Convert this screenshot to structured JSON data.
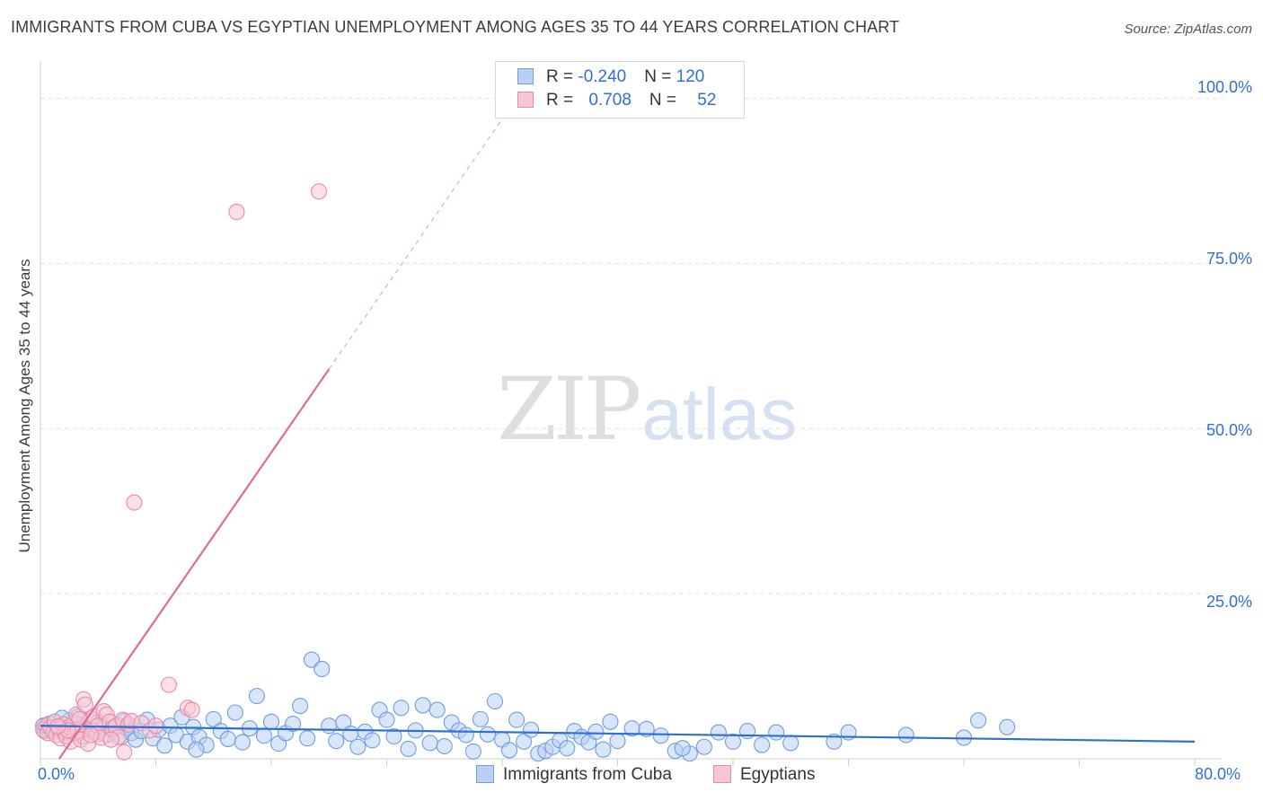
{
  "title": "IMMIGRANTS FROM CUBA VS EGYPTIAN UNEMPLOYMENT AMONG AGES 35 TO 44 YEARS CORRELATION CHART",
  "source": "Source: ZipAtlas.com",
  "watermark": {
    "zip": "ZIP",
    "atlas": "atlas"
  },
  "colors": {
    "blue_fill": "#b9d0f2",
    "blue_stroke": "#6e9ede",
    "blue_line": "#2e6fd2",
    "pink_fill": "#f6c6d5",
    "pink_stroke": "#e98aa8",
    "pink_line": "#e06b94",
    "axis_text": "#2f6fd6",
    "grid": "#e4e4e4"
  },
  "legend": {
    "rows": [
      {
        "r_label": "R = ",
        "r_value": "-0.240",
        "n_label": "N = ",
        "n_value": "120"
      },
      {
        "r_label": "R = ",
        "r_value": "0.708",
        "n_label": "N = ",
        "n_value": "52"
      }
    ]
  },
  "chart_data": {
    "type": "scatter",
    "title": "IMMIGRANTS FROM CUBA VS EGYPTIAN UNEMPLOYMENT AMONG AGES 35 TO 44 YEARS CORRELATION CHART",
    "xlabel": "",
    "ylabel": "Unemployment Among Ages 35 to 44 years",
    "xlim": [
      0,
      80
    ],
    "ylim": [
      0,
      104
    ],
    "x_tick_labels": [
      "0.0%",
      "80.0%"
    ],
    "y_ticks": [
      25,
      50,
      75,
      100
    ],
    "y_tick_labels": [
      "25.0%",
      "50.0%",
      "75.0%",
      "100.0%"
    ],
    "legend_position": "top-center",
    "series": [
      {
        "name": "Immigrants from Cuba",
        "r": -0.24,
        "n": 120,
        "trend": {
          "x0": 0,
          "y0": 5.0,
          "x1": 80,
          "y1": 2.6,
          "dashed_from": null
        },
        "points": [
          [
            0.2,
            5.0
          ],
          [
            0.4,
            4.6
          ],
          [
            0.6,
            5.3
          ],
          [
            0.8,
            4.4
          ],
          [
            1.0,
            5.6
          ],
          [
            1.2,
            4.9
          ],
          [
            1.4,
            4.2
          ],
          [
            1.6,
            5.2
          ],
          [
            1.8,
            4.7
          ],
          [
            2.0,
            5.8
          ],
          [
            2.2,
            4.3
          ],
          [
            2.4,
            5.4
          ],
          [
            2.6,
            6.4
          ],
          [
            2.8,
            4.8
          ],
          [
            3.0,
            5.1
          ],
          [
            3.3,
            4.5
          ],
          [
            3.5,
            6.1
          ],
          [
            3.8,
            4.0
          ],
          [
            4.0,
            5.5
          ],
          [
            4.3,
            4.9
          ],
          [
            4.6,
            3.6
          ],
          [
            5.0,
            4.4
          ],
          [
            5.3,
            5.2
          ],
          [
            5.6,
            3.3
          ],
          [
            6.0,
            4.6
          ],
          [
            6.3,
            3.9
          ],
          [
            6.6,
            2.9
          ],
          [
            7.0,
            4.2
          ],
          [
            7.4,
            5.9
          ],
          [
            7.8,
            3.1
          ],
          [
            8.2,
            4.4
          ],
          [
            8.6,
            2.0
          ],
          [
            9.0,
            5.0
          ],
          [
            9.4,
            3.6
          ],
          [
            9.8,
            6.3
          ],
          [
            10.2,
            2.6
          ],
          [
            10.6,
            4.8
          ],
          [
            11.0,
            3.3
          ],
          [
            11.5,
            2.1
          ],
          [
            12.0,
            6.0
          ],
          [
            12.5,
            4.2
          ],
          [
            13.0,
            3.0
          ],
          [
            13.5,
            7.0
          ],
          [
            14.0,
            2.5
          ],
          [
            14.5,
            4.6
          ],
          [
            15.0,
            9.5
          ],
          [
            15.5,
            3.5
          ],
          [
            16.0,
            5.6
          ],
          [
            16.5,
            2.3
          ],
          [
            17.0,
            3.9
          ],
          [
            17.5,
            5.3
          ],
          [
            18.0,
            8.0
          ],
          [
            18.5,
            3.1
          ],
          [
            18.8,
            15.0
          ],
          [
            19.5,
            13.6
          ],
          [
            20.0,
            5.0
          ],
          [
            20.5,
            2.7
          ],
          [
            21.0,
            5.5
          ],
          [
            21.5,
            3.8
          ],
          [
            22.0,
            1.8
          ],
          [
            22.5,
            4.1
          ],
          [
            23.0,
            2.8
          ],
          [
            23.5,
            7.4
          ],
          [
            24.0,
            5.9
          ],
          [
            24.5,
            3.4
          ],
          [
            25.0,
            7.7
          ],
          [
            25.5,
            1.5
          ],
          [
            26.0,
            4.3
          ],
          [
            26.5,
            8.1
          ],
          [
            27.0,
            2.4
          ],
          [
            27.5,
            7.4
          ],
          [
            28.0,
            1.9
          ],
          [
            28.5,
            5.5
          ],
          [
            29.0,
            4.3
          ],
          [
            29.5,
            3.6
          ],
          [
            30.0,
            1.1
          ],
          [
            30.5,
            6.0
          ],
          [
            31.0,
            3.7
          ],
          [
            31.5,
            8.7
          ],
          [
            32.0,
            2.9
          ],
          [
            32.5,
            1.3
          ],
          [
            33.0,
            5.9
          ],
          [
            33.5,
            2.6
          ],
          [
            34.0,
            4.4
          ],
          [
            34.5,
            0.8
          ],
          [
            35.0,
            1.2
          ],
          [
            35.5,
            1.8
          ],
          [
            36.0,
            2.8
          ],
          [
            36.5,
            1.6
          ],
          [
            37.0,
            4.2
          ],
          [
            37.5,
            3.3
          ],
          [
            38.0,
            2.5
          ],
          [
            38.5,
            4.1
          ],
          [
            39.0,
            1.4
          ],
          [
            39.5,
            5.6
          ],
          [
            40.0,
            2.7
          ],
          [
            41.0,
            4.6
          ],
          [
            42.0,
            4.5
          ],
          [
            43.0,
            3.5
          ],
          [
            44.0,
            1.2
          ],
          [
            45.0,
            0.8
          ],
          [
            46.0,
            1.8
          ],
          [
            47.0,
            4.0
          ],
          [
            48.0,
            2.6
          ],
          [
            49.0,
            4.2
          ],
          [
            50.0,
            2.1
          ],
          [
            51.0,
            4.0
          ],
          [
            52.0,
            2.4
          ],
          [
            55.0,
            2.6
          ],
          [
            56.0,
            4.0
          ],
          [
            60.0,
            3.6
          ],
          [
            64.0,
            3.2
          ],
          [
            65.0,
            5.8
          ],
          [
            67.0,
            4.8
          ],
          [
            0.3,
            4.2
          ],
          [
            1.5,
            6.2
          ],
          [
            2.9,
            3.4
          ],
          [
            5.8,
            5.7
          ],
          [
            10.8,
            1.4
          ],
          [
            44.5,
            1.6
          ]
        ]
      },
      {
        "name": "Egyptians",
        "r": 0.708,
        "n": 52,
        "trend": {
          "x0": 1.3,
          "y0": 0,
          "x1": 33.0,
          "y1": 100,
          "dashed_from": 20.0
        },
        "points": [
          [
            0.2,
            4.4
          ],
          [
            0.4,
            5.0
          ],
          [
            0.5,
            3.9
          ],
          [
            0.7,
            4.7
          ],
          [
            0.9,
            4.1
          ],
          [
            1.0,
            5.6
          ],
          [
            1.1,
            3.6
          ],
          [
            1.3,
            4.5
          ],
          [
            1.4,
            3.1
          ],
          [
            1.6,
            5.2
          ],
          [
            1.7,
            4.0
          ],
          [
            1.8,
            3.4
          ],
          [
            2.0,
            4.8
          ],
          [
            2.1,
            2.6
          ],
          [
            2.3,
            5.4
          ],
          [
            2.4,
            3.9
          ],
          [
            2.5,
            6.7
          ],
          [
            2.6,
            4.2
          ],
          [
            2.8,
            2.9
          ],
          [
            3.0,
            9.0
          ],
          [
            3.1,
            8.2
          ],
          [
            3.3,
            2.3
          ],
          [
            3.4,
            5.7
          ],
          [
            3.6,
            4.4
          ],
          [
            3.7,
            6.4
          ],
          [
            3.9,
            3.7
          ],
          [
            4.0,
            5.0
          ],
          [
            4.2,
            3.2
          ],
          [
            4.4,
            7.2
          ],
          [
            4.6,
            6.7
          ],
          [
            4.8,
            5.6
          ],
          [
            5.0,
            4.6
          ],
          [
            5.2,
            4.9
          ],
          [
            5.4,
            3.3
          ],
          [
            5.7,
            5.9
          ],
          [
            5.8,
            1.0
          ],
          [
            6.1,
            5.2
          ],
          [
            6.3,
            5.7
          ],
          [
            6.5,
            38.8
          ],
          [
            7.0,
            5.4
          ],
          [
            7.6,
            4.3
          ],
          [
            8.0,
            5.0
          ],
          [
            8.9,
            11.2
          ],
          [
            10.2,
            7.7
          ],
          [
            10.5,
            7.4
          ],
          [
            13.6,
            82.8
          ],
          [
            19.3,
            85.9
          ],
          [
            1.9,
            4.3
          ],
          [
            2.7,
            6.0
          ],
          [
            3.5,
            3.6
          ],
          [
            1.2,
            4.9
          ],
          [
            4.9,
            2.9
          ]
        ]
      }
    ]
  },
  "bottom_legend": [
    {
      "label": "Immigrants from Cuba"
    },
    {
      "label": "Egyptians"
    }
  ]
}
